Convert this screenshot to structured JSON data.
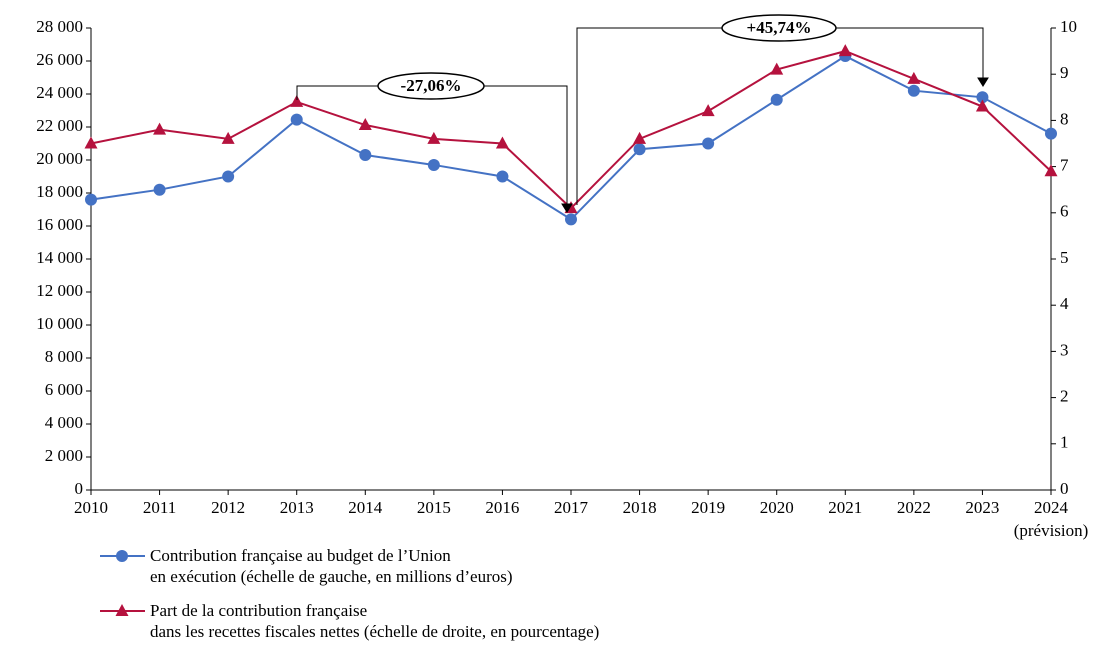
{
  "chart_data": {
    "type": "line",
    "categories": [
      "2010",
      "2011",
      "2012",
      "2013",
      "2014",
      "2015",
      "2016",
      "2017",
      "2018",
      "2019",
      "2020",
      "2021",
      "2022",
      "2023",
      "2024"
    ],
    "x_note": "(prévision)",
    "series": [
      {
        "name": "Contribution française au budget de l’Union\nen exécution (échelle de gauche, en millions d’euros)",
        "color": "#4472c4",
        "marker": "circle",
        "values": [
          17600,
          18200,
          19000,
          22450,
          20300,
          19700,
          19000,
          16400,
          20650,
          21000,
          23650,
          26300,
          24200,
          23800,
          21600
        ]
      },
      {
        "name": "Part de la contribution française\ndans les recettes fiscales nettes (échelle de droite, en pourcentage)",
        "color": "#b5123e",
        "marker": "triangle",
        "axis": "y2",
        "values": [
          7.5,
          7.8,
          7.6,
          8.4,
          7.9,
          7.6,
          7.5,
          6.1,
          7.6,
          8.2,
          9.1,
          9.5,
          8.9,
          8.3,
          6.9
        ]
      }
    ],
    "ylim": [
      0,
      28000
    ],
    "yticks": [
      0,
      {
        "value": 2000,
        "label": "2 000"
      },
      {
        "value": 4000,
        "label": "4 000"
      },
      {
        "value": 6000,
        "label": "6 000"
      },
      {
        "value": 8000,
        "label": "8 000"
      },
      {
        "value": 10000,
        "label": "10 000"
      },
      {
        "value": 12000,
        "label": "12 000"
      },
      {
        "value": 14000,
        "label": "14 000"
      },
      {
        "value": 16000,
        "label": "16 000"
      },
      {
        "value": 18000,
        "label": "18 000"
      },
      {
        "value": 20000,
        "label": "20 000"
      },
      {
        "value": 22000,
        "label": "22 000"
      },
      {
        "value": 24000,
        "label": "24 000"
      },
      {
        "value": 26000,
        "label": "26 000"
      },
      {
        "value": 28000,
        "label": "28 000"
      }
    ],
    "y2lim": [
      0,
      10
    ],
    "y2ticks": [
      0,
      1,
      2,
      3,
      4,
      5,
      6,
      7,
      8,
      9,
      10
    ],
    "annotations": [
      "-27,06%",
      "+45,74%"
    ],
    "grid": false
  }
}
